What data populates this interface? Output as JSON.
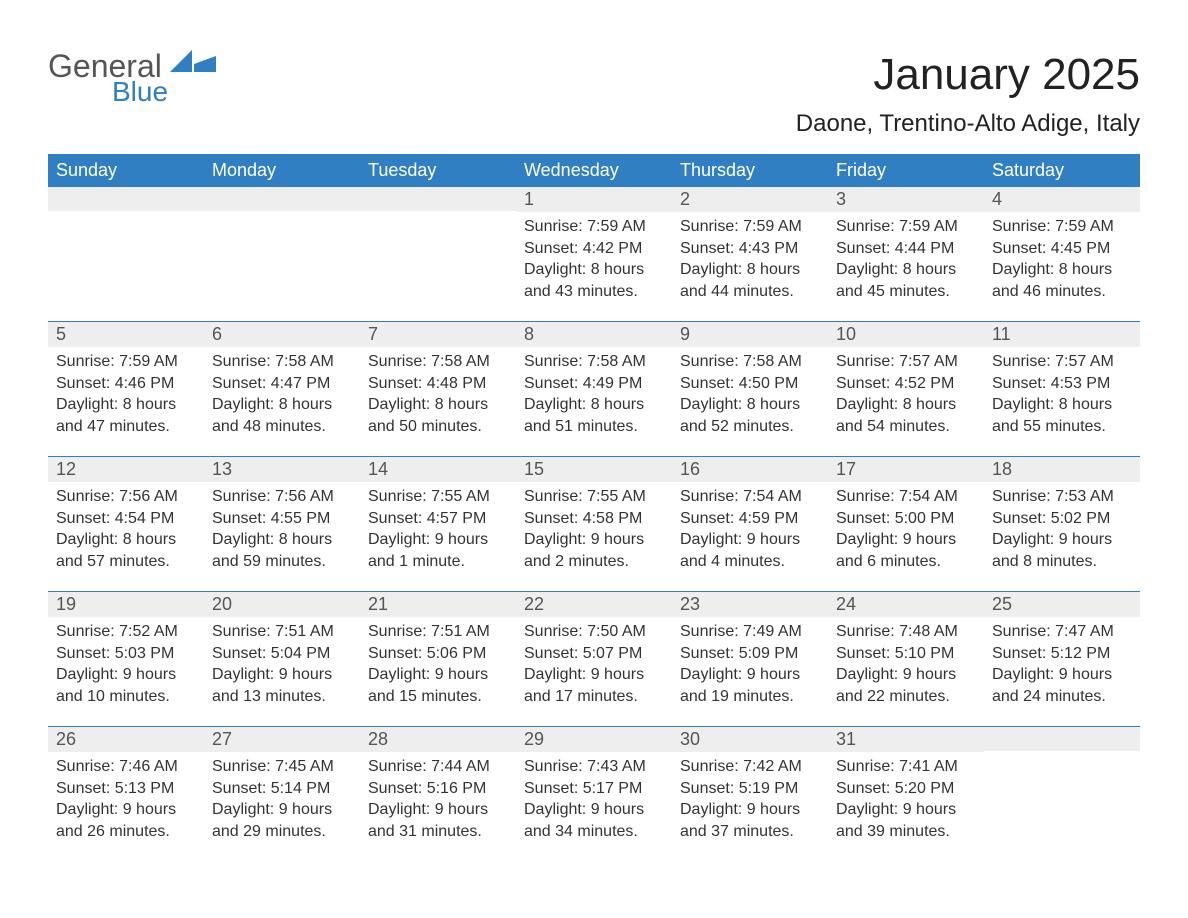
{
  "logo": {
    "text1": "General",
    "text2": "Blue",
    "accent_color": "#2f7fc2",
    "text1_color": "#555555"
  },
  "title": "January 2025",
  "subtitle": "Daone, Trentino-Alto Adige, Italy",
  "colors": {
    "header_bg": "#2f7fc2",
    "header_text": "#ffffff",
    "daynum_bg": "#eeeeee",
    "daynum_text": "#555555",
    "body_text": "#333333",
    "week_border": "#2f7fc2",
    "page_bg": "#ffffff"
  },
  "fonts": {
    "title_pt": 44,
    "subtitle_pt": 24,
    "dow_pt": 18,
    "daynum_pt": 18,
    "body_pt": 16
  },
  "days_of_week": [
    "Sunday",
    "Monday",
    "Tuesday",
    "Wednesday",
    "Thursday",
    "Friday",
    "Saturday"
  ],
  "weeks": [
    [
      null,
      null,
      null,
      {
        "n": "1",
        "sunrise": "Sunrise: 7:59 AM",
        "sunset": "Sunset: 4:42 PM",
        "dl1": "Daylight: 8 hours",
        "dl2": "and 43 minutes."
      },
      {
        "n": "2",
        "sunrise": "Sunrise: 7:59 AM",
        "sunset": "Sunset: 4:43 PM",
        "dl1": "Daylight: 8 hours",
        "dl2": "and 44 minutes."
      },
      {
        "n": "3",
        "sunrise": "Sunrise: 7:59 AM",
        "sunset": "Sunset: 4:44 PM",
        "dl1": "Daylight: 8 hours",
        "dl2": "and 45 minutes."
      },
      {
        "n": "4",
        "sunrise": "Sunrise: 7:59 AM",
        "sunset": "Sunset: 4:45 PM",
        "dl1": "Daylight: 8 hours",
        "dl2": "and 46 minutes."
      }
    ],
    [
      {
        "n": "5",
        "sunrise": "Sunrise: 7:59 AM",
        "sunset": "Sunset: 4:46 PM",
        "dl1": "Daylight: 8 hours",
        "dl2": "and 47 minutes."
      },
      {
        "n": "6",
        "sunrise": "Sunrise: 7:58 AM",
        "sunset": "Sunset: 4:47 PM",
        "dl1": "Daylight: 8 hours",
        "dl2": "and 48 minutes."
      },
      {
        "n": "7",
        "sunrise": "Sunrise: 7:58 AM",
        "sunset": "Sunset: 4:48 PM",
        "dl1": "Daylight: 8 hours",
        "dl2": "and 50 minutes."
      },
      {
        "n": "8",
        "sunrise": "Sunrise: 7:58 AM",
        "sunset": "Sunset: 4:49 PM",
        "dl1": "Daylight: 8 hours",
        "dl2": "and 51 minutes."
      },
      {
        "n": "9",
        "sunrise": "Sunrise: 7:58 AM",
        "sunset": "Sunset: 4:50 PM",
        "dl1": "Daylight: 8 hours",
        "dl2": "and 52 minutes."
      },
      {
        "n": "10",
        "sunrise": "Sunrise: 7:57 AM",
        "sunset": "Sunset: 4:52 PM",
        "dl1": "Daylight: 8 hours",
        "dl2": "and 54 minutes."
      },
      {
        "n": "11",
        "sunrise": "Sunrise: 7:57 AM",
        "sunset": "Sunset: 4:53 PM",
        "dl1": "Daylight: 8 hours",
        "dl2": "and 55 minutes."
      }
    ],
    [
      {
        "n": "12",
        "sunrise": "Sunrise: 7:56 AM",
        "sunset": "Sunset: 4:54 PM",
        "dl1": "Daylight: 8 hours",
        "dl2": "and 57 minutes."
      },
      {
        "n": "13",
        "sunrise": "Sunrise: 7:56 AM",
        "sunset": "Sunset: 4:55 PM",
        "dl1": "Daylight: 8 hours",
        "dl2": "and 59 minutes."
      },
      {
        "n": "14",
        "sunrise": "Sunrise: 7:55 AM",
        "sunset": "Sunset: 4:57 PM",
        "dl1": "Daylight: 9 hours",
        "dl2": "and 1 minute."
      },
      {
        "n": "15",
        "sunrise": "Sunrise: 7:55 AM",
        "sunset": "Sunset: 4:58 PM",
        "dl1": "Daylight: 9 hours",
        "dl2": "and 2 minutes."
      },
      {
        "n": "16",
        "sunrise": "Sunrise: 7:54 AM",
        "sunset": "Sunset: 4:59 PM",
        "dl1": "Daylight: 9 hours",
        "dl2": "and 4 minutes."
      },
      {
        "n": "17",
        "sunrise": "Sunrise: 7:54 AM",
        "sunset": "Sunset: 5:00 PM",
        "dl1": "Daylight: 9 hours",
        "dl2": "and 6 minutes."
      },
      {
        "n": "18",
        "sunrise": "Sunrise: 7:53 AM",
        "sunset": "Sunset: 5:02 PM",
        "dl1": "Daylight: 9 hours",
        "dl2": "and 8 minutes."
      }
    ],
    [
      {
        "n": "19",
        "sunrise": "Sunrise: 7:52 AM",
        "sunset": "Sunset: 5:03 PM",
        "dl1": "Daylight: 9 hours",
        "dl2": "and 10 minutes."
      },
      {
        "n": "20",
        "sunrise": "Sunrise: 7:51 AM",
        "sunset": "Sunset: 5:04 PM",
        "dl1": "Daylight: 9 hours",
        "dl2": "and 13 minutes."
      },
      {
        "n": "21",
        "sunrise": "Sunrise: 7:51 AM",
        "sunset": "Sunset: 5:06 PM",
        "dl1": "Daylight: 9 hours",
        "dl2": "and 15 minutes."
      },
      {
        "n": "22",
        "sunrise": "Sunrise: 7:50 AM",
        "sunset": "Sunset: 5:07 PM",
        "dl1": "Daylight: 9 hours",
        "dl2": "and 17 minutes."
      },
      {
        "n": "23",
        "sunrise": "Sunrise: 7:49 AM",
        "sunset": "Sunset: 5:09 PM",
        "dl1": "Daylight: 9 hours",
        "dl2": "and 19 minutes."
      },
      {
        "n": "24",
        "sunrise": "Sunrise: 7:48 AM",
        "sunset": "Sunset: 5:10 PM",
        "dl1": "Daylight: 9 hours",
        "dl2": "and 22 minutes."
      },
      {
        "n": "25",
        "sunrise": "Sunrise: 7:47 AM",
        "sunset": "Sunset: 5:12 PM",
        "dl1": "Daylight: 9 hours",
        "dl2": "and 24 minutes."
      }
    ],
    [
      {
        "n": "26",
        "sunrise": "Sunrise: 7:46 AM",
        "sunset": "Sunset: 5:13 PM",
        "dl1": "Daylight: 9 hours",
        "dl2": "and 26 minutes."
      },
      {
        "n": "27",
        "sunrise": "Sunrise: 7:45 AM",
        "sunset": "Sunset: 5:14 PM",
        "dl1": "Daylight: 9 hours",
        "dl2": "and 29 minutes."
      },
      {
        "n": "28",
        "sunrise": "Sunrise: 7:44 AM",
        "sunset": "Sunset: 5:16 PM",
        "dl1": "Daylight: 9 hours",
        "dl2": "and 31 minutes."
      },
      {
        "n": "29",
        "sunrise": "Sunrise: 7:43 AM",
        "sunset": "Sunset: 5:17 PM",
        "dl1": "Daylight: 9 hours",
        "dl2": "and 34 minutes."
      },
      {
        "n": "30",
        "sunrise": "Sunrise: 7:42 AM",
        "sunset": "Sunset: 5:19 PM",
        "dl1": "Daylight: 9 hours",
        "dl2": "and 37 minutes."
      },
      {
        "n": "31",
        "sunrise": "Sunrise: 7:41 AM",
        "sunset": "Sunset: 5:20 PM",
        "dl1": "Daylight: 9 hours",
        "dl2": "and 39 minutes."
      },
      null
    ]
  ]
}
